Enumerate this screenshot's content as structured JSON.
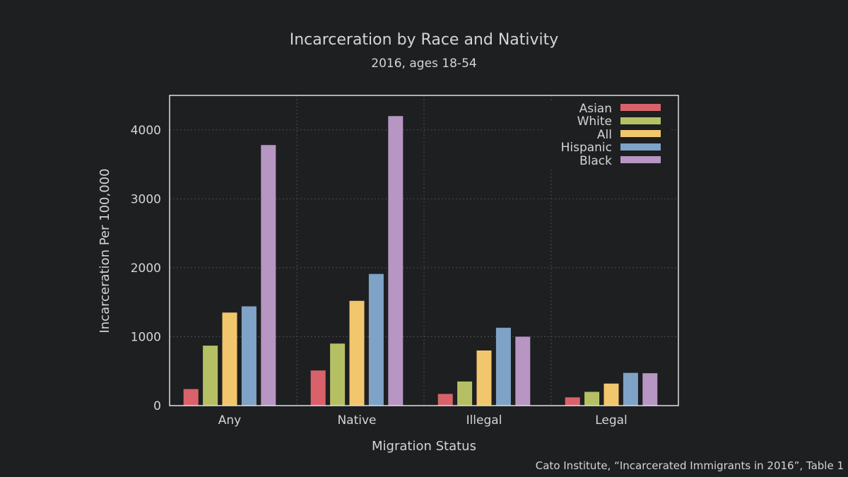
{
  "chart_data": {
    "type": "bar",
    "title": "Incarceration by Race and Nativity",
    "subtitle": "2016, ages 18-54",
    "xlabel": "Migration Status",
    "ylabel": "Incarceration Per 100,000",
    "categories": [
      "Any",
      "Native",
      "Illegal",
      "Legal"
    ],
    "series": [
      {
        "name": "Asian",
        "color": "#d9626a",
        "values": [
          240,
          510,
          170,
          120
        ]
      },
      {
        "name": "White",
        "color": "#b5c064",
        "values": [
          870,
          900,
          350,
          200
        ]
      },
      {
        "name": "All",
        "color": "#f2c66d",
        "values": [
          1350,
          1520,
          800,
          320
        ]
      },
      {
        "name": "Hispanic",
        "color": "#7fa3c7",
        "values": [
          1440,
          1910,
          1130,
          475
        ]
      },
      {
        "name": "Black",
        "color": "#b796c3",
        "values": [
          3780,
          4200,
          1000,
          470
        ]
      }
    ],
    "ylim": [
      0,
      4500
    ],
    "yticks": [
      "0",
      "1000",
      "2000",
      "3000",
      "4000"
    ],
    "grid": true,
    "legend_position": "top-right",
    "source": "Cato Institute, “Incarcerated Immigrants in 2016”, Table 1"
  }
}
